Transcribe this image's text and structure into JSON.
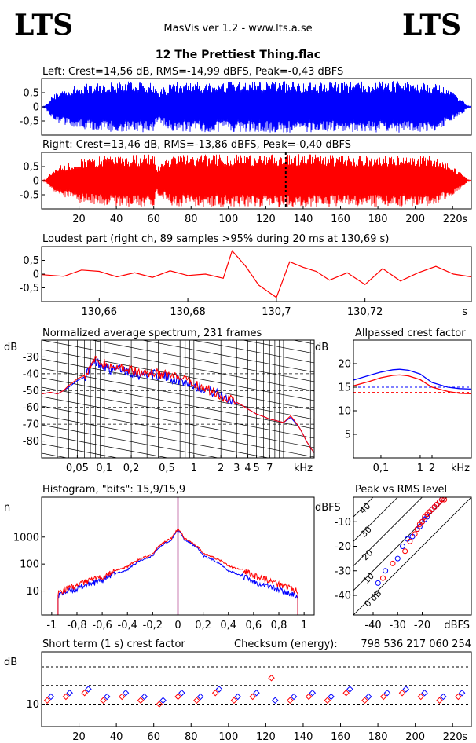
{
  "header": {
    "logo_left": "LTS",
    "logo_right": "LTS",
    "app_title": "MasVis ver 1.2 - www.lts.a.se",
    "file_title": "12 The Prettiest Thing.flac"
  },
  "colors": {
    "left": "#0000ff",
    "right": "#ff0000",
    "frame": "#000000"
  },
  "chart_data": [
    {
      "id": "left_wave",
      "type": "area",
      "title": "Left: Crest=14,56 dB, RMS=-14,99 dBFS, Peak=-0,43 dBFS",
      "yticks": [
        "0,5",
        "0",
        "-0,5"
      ],
      "ylim": [
        -1,
        1
      ],
      "xlim": [
        0,
        230
      ],
      "series": [
        {
          "color": "#0000ff",
          "x": [
            0,
            2,
            5,
            10,
            20,
            40,
            60,
            62,
            70,
            90,
            110,
            130,
            150,
            170,
            190,
            210,
            215,
            220,
            225,
            228,
            230
          ],
          "values": [
            0,
            0.05,
            0.35,
            0.6,
            0.8,
            0.9,
            0.92,
            0.55,
            0.88,
            0.9,
            0.9,
            0.92,
            0.9,
            0.9,
            0.92,
            0.88,
            0.7,
            0.5,
            0.25,
            0.05,
            0
          ]
        }
      ]
    },
    {
      "id": "right_wave",
      "type": "area",
      "title": "Right: Crest=13,46 dB, RMS=-13,86 dBFS, Peak=-0,40 dBFS",
      "yticks": [
        "0,5",
        "0",
        "-0,5"
      ],
      "ylim": [
        -1,
        1
      ],
      "xlim": [
        0,
        230
      ],
      "xticks": [
        "20",
        "40",
        "60",
        "80",
        "100",
        "120",
        "140",
        "160",
        "180",
        "200",
        "220"
      ],
      "xunit": "s",
      "marker_x": 130.69,
      "series": [
        {
          "color": "#ff0000",
          "x": [
            0,
            2,
            5,
            10,
            20,
            40,
            60,
            62,
            70,
            90,
            110,
            130,
            150,
            170,
            190,
            210,
            215,
            220,
            225,
            228,
            230
          ],
          "values": [
            0,
            0.05,
            0.3,
            0.55,
            0.8,
            0.92,
            0.93,
            0.5,
            0.9,
            0.93,
            0.92,
            0.95,
            0.93,
            0.92,
            0.93,
            0.9,
            0.72,
            0.5,
            0.25,
            0.05,
            0
          ]
        }
      ]
    },
    {
      "id": "loudest",
      "type": "line",
      "title": "Loudest part (right ch, 89 samples >95% during 20 ms at 130,69 s)",
      "yticks": [
        "0,5",
        "0",
        "-0,5"
      ],
      "ylim": [
        -1,
        1
      ],
      "xlim": [
        130.647,
        130.744
      ],
      "xticks": [
        "130,66",
        "130,68",
        "130,7",
        "130,72"
      ],
      "xunit": "s",
      "series": [
        {
          "color": "#ff0000",
          "x": [
            130.647,
            130.652,
            130.656,
            130.66,
            130.664,
            130.668,
            130.672,
            130.676,
            130.68,
            130.684,
            130.688,
            130.69,
            130.693,
            130.696,
            130.7,
            130.703,
            130.706,
            130.709,
            130.712,
            130.716,
            130.72,
            130.724,
            130.728,
            130.732,
            130.736,
            130.74,
            130.744
          ],
          "values": [
            -0.02,
            -0.08,
            0.15,
            0.1,
            -0.1,
            0.05,
            -0.12,
            0.12,
            -0.05,
            0.0,
            -0.15,
            0.85,
            0.3,
            -0.4,
            -0.85,
            0.45,
            0.25,
            0.1,
            -0.22,
            0.05,
            -0.38,
            0.2,
            -0.25,
            0.05,
            0.28,
            0.0,
            -0.1
          ]
        }
      ]
    },
    {
      "id": "spectrum",
      "type": "line",
      "title": "Normalized average spectrum, 231 frames",
      "yunit": "dB",
      "yticks": [
        "-30",
        "-40",
        "-50",
        "-60",
        "-70",
        "-80"
      ],
      "ylim": [
        -90,
        -20
      ],
      "xscale": "log",
      "xlim": [
        0.02,
        22
      ],
      "xticks": [
        "0,05",
        "0,1",
        "0,2",
        "0,5",
        "1",
        "2",
        "3",
        "4",
        "5",
        "7"
      ],
      "xunit": "kHz",
      "series": [
        {
          "color": "#0000ff",
          "x": [
            0.02,
            0.025,
            0.03,
            0.035,
            0.04,
            0.05,
            0.06,
            0.07,
            0.08,
            0.1,
            0.12,
            0.15,
            0.2,
            0.25,
            0.3,
            0.4,
            0.5,
            0.7,
            1,
            1.5,
            2,
            3,
            4,
            5,
            7,
            10,
            12,
            15,
            18,
            20,
            22
          ],
          "values": [
            -52,
            -51,
            -52,
            -50,
            -48,
            -44,
            -42,
            -36,
            -33,
            -35,
            -38,
            -37,
            -39,
            -41,
            -40,
            -41,
            -42,
            -44,
            -47,
            -50,
            -53,
            -57,
            -61,
            -64,
            -67,
            -69,
            -66,
            -72,
            -80,
            -84,
            -87
          ]
        },
        {
          "color": "#ff0000",
          "x": [
            0.02,
            0.025,
            0.03,
            0.035,
            0.04,
            0.05,
            0.06,
            0.07,
            0.08,
            0.1,
            0.12,
            0.15,
            0.2,
            0.25,
            0.3,
            0.4,
            0.5,
            0.7,
            1,
            1.5,
            2,
            3,
            4,
            5,
            7,
            10,
            12,
            15,
            18,
            20,
            22
          ],
          "values": [
            -52,
            -51,
            -52,
            -50,
            -47,
            -43,
            -41,
            -35,
            -32,
            -34,
            -37,
            -36,
            -38,
            -40,
            -39,
            -40,
            -41,
            -43,
            -46,
            -50,
            -53,
            -57,
            -61,
            -64,
            -67,
            -69,
            -65,
            -72,
            -80,
            -84,
            -87
          ]
        }
      ]
    },
    {
      "id": "allpass",
      "type": "line",
      "title": "Allpassed crest factor",
      "yunit": "dB",
      "yticks": [
        "20",
        "15",
        "10",
        "5"
      ],
      "ylim": [
        0,
        25
      ],
      "xscale": "log",
      "xlim": [
        0.02,
        20
      ],
      "xticks": [
        "0,1",
        "1",
        "2"
      ],
      "xunit": "kHz",
      "series": [
        {
          "color": "#0000ff",
          "x": [
            0.02,
            0.05,
            0.1,
            0.2,
            0.3,
            0.5,
            1,
            2,
            5,
            10,
            20
          ],
          "values": [
            16.5,
            17.5,
            18.2,
            18.7,
            18.8,
            18.6,
            17.8,
            16.0,
            15.0,
            14.7,
            14.6
          ]
        },
        {
          "color": "#ff0000",
          "x": [
            0.02,
            0.05,
            0.1,
            0.2,
            0.3,
            0.5,
            1,
            2,
            5,
            10,
            20
          ],
          "values": [
            15.3,
            16.2,
            17.0,
            17.5,
            17.6,
            17.4,
            16.6,
            15.0,
            14.1,
            13.7,
            13.6
          ]
        }
      ],
      "refs": [
        {
          "color": "#0000ff",
          "value": 15.0
        },
        {
          "color": "#ff0000",
          "value": 13.9
        }
      ]
    },
    {
      "id": "histogram",
      "type": "line",
      "title": "Histogram, \"bits\": 15,9/15,9",
      "yunit": "n",
      "yscale": "log",
      "yticks": [
        "1000",
        "100",
        "10"
      ],
      "ylim": [
        1.3,
        30000
      ],
      "xlim": [
        -1.08,
        1.08
      ],
      "xticks": [
        "-1",
        "-0,8",
        "-0,6",
        "-0,4",
        "-0,2",
        "0",
        "0,2",
        "0,4",
        "0,6",
        "0,8",
        "1"
      ],
      "series": [
        {
          "color": "#0000ff",
          "x": [
            -0.95,
            -0.9,
            -0.8,
            -0.6,
            -0.4,
            -0.2,
            -0.05,
            0,
            0.05,
            0.2,
            0.4,
            0.6,
            0.8,
            0.9,
            0.95
          ],
          "values": [
            7,
            9,
            12,
            25,
            60,
            200,
            800,
            1800,
            800,
            200,
            55,
            22,
            11,
            8,
            6
          ]
        },
        {
          "color": "#ff0000",
          "x": [
            -0.95,
            -0.9,
            -0.8,
            -0.6,
            -0.4,
            -0.2,
            -0.05,
            0,
            0.05,
            0.2,
            0.4,
            0.6,
            0.8,
            0.9,
            0.95
          ],
          "values": [
            9,
            11,
            16,
            35,
            80,
            230,
            900,
            2000,
            900,
            240,
            85,
            38,
            18,
            13,
            10
          ]
        }
      ]
    },
    {
      "id": "peak_rms",
      "type": "scatter",
      "title": "Peak vs RMS level",
      "yunit": "dBFS",
      "yticks": [
        "-10",
        "-20",
        "-30",
        "-40"
      ],
      "ylim": [
        -48,
        0
      ],
      "xlim": [
        -48,
        0
      ],
      "xticks": [
        "-40",
        "-30",
        "-20"
      ],
      "xunit": "dBFS",
      "diag_labels": [
        "40",
        "30",
        "20",
        "10",
        "0 dB"
      ],
      "series": [
        {
          "color": "#0000ff",
          "x": [
            -38,
            -35,
            -30,
            -28,
            -26,
            -24,
            -22,
            -21,
            -20,
            -19,
            -18,
            -17,
            -16,
            -15,
            -14,
            -13,
            -12
          ],
          "values": [
            -35,
            -30,
            -25,
            -20,
            -17,
            -16,
            -13,
            -12,
            -10,
            -9,
            -8,
            -6,
            -5,
            -4,
            -3,
            -2,
            -1
          ]
        },
        {
          "color": "#ff0000",
          "x": [
            -36,
            -32,
            -27,
            -25,
            -23,
            -22,
            -21,
            -20,
            -19,
            -18,
            -17,
            -16,
            -15,
            -14,
            -13,
            -12,
            -11
          ],
          "values": [
            -33,
            -27,
            -22,
            -18,
            -15,
            -13,
            -11,
            -10,
            -8,
            -7,
            -6,
            -5,
            -4,
            -3,
            -2,
            -1,
            -1
          ]
        }
      ]
    },
    {
      "id": "short_crest",
      "type": "scatter",
      "title": "Short term (1 s) crest factor",
      "checksum_label": "Checksum (energy):",
      "checksum_value": "798 536 217 060 254",
      "yunit": "dB",
      "yticks": [
        "10"
      ],
      "ylim": [
        4,
        24
      ],
      "refs": [
        10,
        15,
        20
      ],
      "xlim": [
        0,
        230
      ],
      "xticks": [
        "20",
        "40",
        "60",
        "80",
        "100",
        "120",
        "140",
        "160",
        "180",
        "200",
        "220"
      ],
      "xunit": "s",
      "series": [
        {
          "color": "#0000ff",
          "x": [
            5,
            15,
            25,
            35,
            45,
            55,
            65,
            75,
            85,
            95,
            105,
            115,
            125,
            135,
            145,
            155,
            165,
            175,
            185,
            195,
            205,
            215,
            225
          ],
          "values": [
            12,
            13,
            14,
            12,
            13,
            12,
            11,
            13,
            12,
            14,
            12,
            13,
            11,
            12,
            13,
            12,
            14,
            12,
            13,
            14,
            13,
            12,
            13
          ]
        },
        {
          "color": "#ff0000",
          "x": [
            3,
            13,
            23,
            33,
            43,
            53,
            63,
            73,
            83,
            93,
            103,
            113,
            123,
            133,
            143,
            153,
            163,
            173,
            183,
            193,
            203,
            213,
            223
          ],
          "values": [
            11,
            12,
            13,
            11,
            12,
            11,
            10,
            12,
            11,
            13,
            11,
            12,
            17,
            11,
            12,
            11,
            13,
            11,
            12,
            13,
            12,
            11,
            12
          ]
        }
      ]
    }
  ]
}
